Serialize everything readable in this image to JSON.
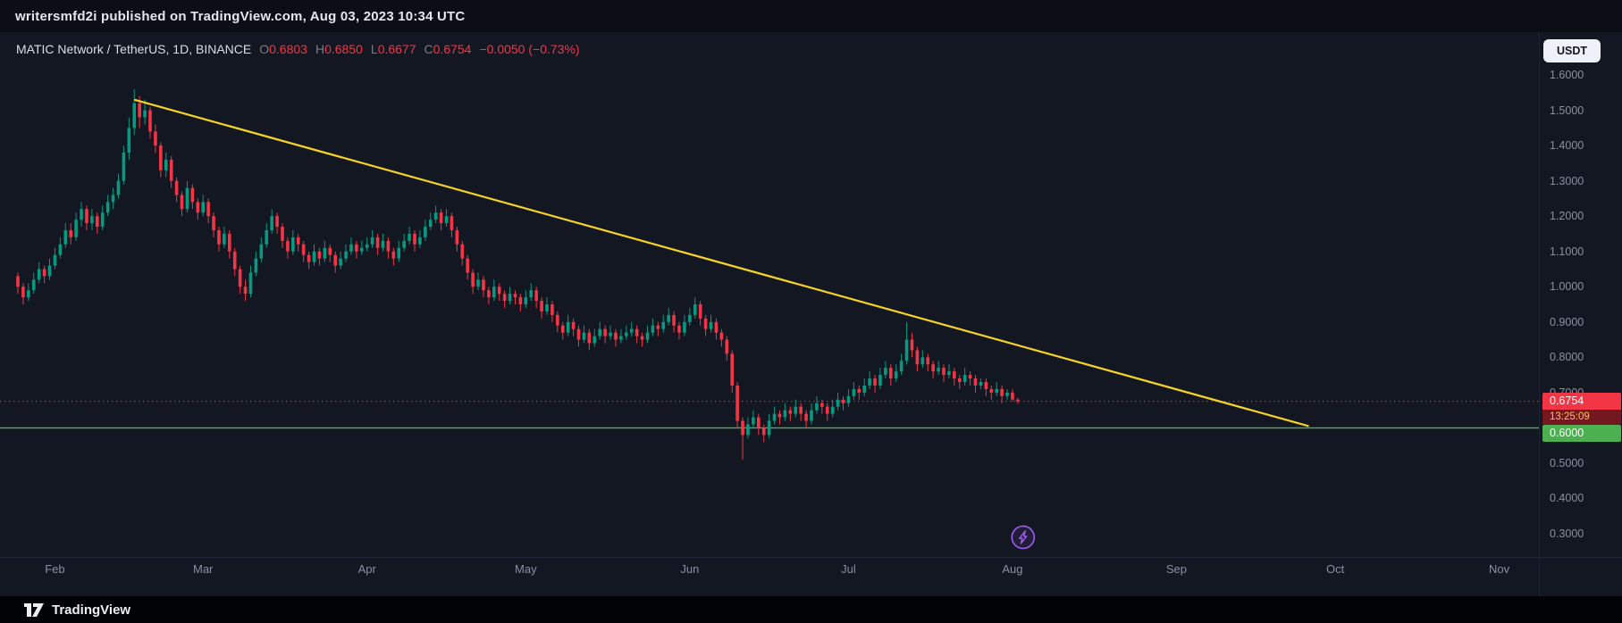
{
  "publish_bar": {
    "text": "writersmfd2i published on TradingView.com, Aug 03, 2023 10:34 UTC"
  },
  "chart_header": {
    "symbol_title": "MATIC Network / TetherUS, 1D, BINANCE",
    "ohlc_items": [
      {
        "label": "O",
        "value": "0.6803"
      },
      {
        "label": "H",
        "value": "0.6850"
      },
      {
        "label": "L",
        "value": "0.6677"
      },
      {
        "label": "C",
        "value": "0.6754"
      }
    ],
    "change": "−0.0050 (−0.73%)"
  },
  "currency_button_label": "USDT",
  "price_axis": {
    "ticks": [
      "1.6000",
      "1.5000",
      "1.4000",
      "1.3000",
      "1.2000",
      "1.1000",
      "1.0000",
      "0.9000",
      "0.8000",
      "0.7000",
      "0.5000",
      "0.4000",
      "0.3000"
    ],
    "last_price_badge": {
      "price": "0.6754",
      "countdown": "13:25:09"
    },
    "support_badge": "0.6000"
  },
  "time_axis": {
    "months": [
      {
        "label": "Feb",
        "t": 7
      },
      {
        "label": "Mar",
        "t": 35
      },
      {
        "label": "Apr",
        "t": 66
      },
      {
        "label": "May",
        "t": 96
      },
      {
        "label": "Jun",
        "t": 127
      },
      {
        "label": "Jul",
        "t": 157
      },
      {
        "label": "Aug",
        "t": 188
      },
      {
        "label": "Sep",
        "t": 219
      },
      {
        "label": "Oct",
        "t": 249
      },
      {
        "label": "Nov",
        "t": 280
      }
    ]
  },
  "footer": {
    "logo_text": "TradingView"
  },
  "chart_data": {
    "type": "candlestick",
    "title": "MATIC Network / TetherUS, 1D, BINANCE",
    "symbol": "MATICUSDT",
    "exchange": "BINANCE",
    "timeframe": "1D",
    "quote_currency": "USDT",
    "x_unit": "days since first visible candle (late Jan 2023)",
    "x_axis_labels": [
      "Feb",
      "Mar",
      "Apr",
      "May",
      "Jun",
      "Jul",
      "Aug",
      "Sep",
      "Oct",
      "Nov"
    ],
    "y_ticks": [
      1.6,
      1.5,
      1.4,
      1.3,
      1.2,
      1.1,
      1.0,
      0.9,
      0.8,
      0.7,
      0.6,
      0.5,
      0.4,
      0.3
    ],
    "ylim": [
      0.25,
      1.65
    ],
    "grid": "off",
    "legend_position": "none",
    "current_candle": {
      "open": 0.6803,
      "high": 0.685,
      "low": 0.6677,
      "close": 0.6754,
      "change": -0.005,
      "change_pct": -0.73
    },
    "candles_format": [
      "open",
      "high",
      "low",
      "close"
    ],
    "candles": [
      [
        1.03,
        1.04,
        0.98,
        1.0
      ],
      [
        1.0,
        1.01,
        0.95,
        0.97
      ],
      [
        0.97,
        1.01,
        0.96,
        0.99
      ],
      [
        0.99,
        1.04,
        0.98,
        1.02
      ],
      [
        1.02,
        1.07,
        1.01,
        1.05
      ],
      [
        1.05,
        1.06,
        1.01,
        1.03
      ],
      [
        1.03,
        1.08,
        1.02,
        1.06
      ],
      [
        1.06,
        1.11,
        1.05,
        1.09
      ],
      [
        1.09,
        1.14,
        1.08,
        1.12
      ],
      [
        1.12,
        1.18,
        1.11,
        1.16
      ],
      [
        1.16,
        1.18,
        1.12,
        1.14
      ],
      [
        1.14,
        1.21,
        1.13,
        1.19
      ],
      [
        1.19,
        1.24,
        1.17,
        1.22
      ],
      [
        1.22,
        1.23,
        1.16,
        1.18
      ],
      [
        1.18,
        1.22,
        1.16,
        1.2
      ],
      [
        1.2,
        1.21,
        1.15,
        1.17
      ],
      [
        1.17,
        1.23,
        1.16,
        1.21
      ],
      [
        1.21,
        1.26,
        1.2,
        1.24
      ],
      [
        1.24,
        1.28,
        1.22,
        1.26
      ],
      [
        1.26,
        1.32,
        1.25,
        1.3
      ],
      [
        1.3,
        1.4,
        1.29,
        1.38
      ],
      [
        1.38,
        1.48,
        1.36,
        1.45
      ],
      [
        1.45,
        1.56,
        1.43,
        1.52
      ],
      [
        1.52,
        1.54,
        1.45,
        1.48
      ],
      [
        1.48,
        1.53,
        1.46,
        1.5
      ],
      [
        1.5,
        1.51,
        1.42,
        1.44
      ],
      [
        1.44,
        1.46,
        1.38,
        1.4
      ],
      [
        1.4,
        1.41,
        1.31,
        1.33
      ],
      [
        1.33,
        1.38,
        1.31,
        1.36
      ],
      [
        1.36,
        1.37,
        1.28,
        1.3
      ],
      [
        1.3,
        1.31,
        1.24,
        1.26
      ],
      [
        1.26,
        1.27,
        1.2,
        1.22
      ],
      [
        1.22,
        1.3,
        1.21,
        1.28
      ],
      [
        1.28,
        1.29,
        1.22,
        1.24
      ],
      [
        1.24,
        1.25,
        1.19,
        1.21
      ],
      [
        1.21,
        1.26,
        1.2,
        1.24
      ],
      [
        1.24,
        1.25,
        1.18,
        1.2
      ],
      [
        1.2,
        1.21,
        1.14,
        1.16
      ],
      [
        1.16,
        1.17,
        1.1,
        1.12
      ],
      [
        1.12,
        1.17,
        1.11,
        1.15
      ],
      [
        1.15,
        1.16,
        1.08,
        1.1
      ],
      [
        1.1,
        1.11,
        1.03,
        1.05
      ],
      [
        1.05,
        1.06,
        0.98,
        1.0
      ],
      [
        1.0,
        1.02,
        0.96,
        0.98
      ],
      [
        0.98,
        1.06,
        0.97,
        1.04
      ],
      [
        1.04,
        1.1,
        1.03,
        1.08
      ],
      [
        1.08,
        1.14,
        1.07,
        1.12
      ],
      [
        1.12,
        1.18,
        1.11,
        1.16
      ],
      [
        1.16,
        1.22,
        1.15,
        1.2
      ],
      [
        1.2,
        1.21,
        1.15,
        1.17
      ],
      [
        1.17,
        1.18,
        1.11,
        1.13
      ],
      [
        1.13,
        1.14,
        1.08,
        1.1
      ],
      [
        1.1,
        1.16,
        1.09,
        1.14
      ],
      [
        1.14,
        1.15,
        1.1,
        1.12
      ],
      [
        1.12,
        1.13,
        1.07,
        1.09
      ],
      [
        1.09,
        1.1,
        1.05,
        1.07
      ],
      [
        1.07,
        1.12,
        1.06,
        1.1
      ],
      [
        1.1,
        1.11,
        1.06,
        1.08
      ],
      [
        1.08,
        1.13,
        1.07,
        1.11
      ],
      [
        1.11,
        1.12,
        1.07,
        1.09
      ],
      [
        1.09,
        1.1,
        1.04,
        1.06
      ],
      [
        1.06,
        1.1,
        1.05,
        1.08
      ],
      [
        1.08,
        1.12,
        1.07,
        1.1
      ],
      [
        1.1,
        1.14,
        1.09,
        1.12
      ],
      [
        1.12,
        1.13,
        1.08,
        1.1
      ],
      [
        1.1,
        1.13,
        1.09,
        1.11
      ],
      [
        1.11,
        1.14,
        1.1,
        1.12
      ],
      [
        1.12,
        1.16,
        1.11,
        1.14
      ],
      [
        1.14,
        1.15,
        1.09,
        1.11
      ],
      [
        1.11,
        1.15,
        1.1,
        1.13
      ],
      [
        1.13,
        1.14,
        1.08,
        1.1
      ],
      [
        1.1,
        1.11,
        1.06,
        1.08
      ],
      [
        1.08,
        1.13,
        1.07,
        1.11
      ],
      [
        1.11,
        1.15,
        1.1,
        1.13
      ],
      [
        1.13,
        1.17,
        1.12,
        1.15
      ],
      [
        1.15,
        1.16,
        1.1,
        1.12
      ],
      [
        1.12,
        1.16,
        1.11,
        1.14
      ],
      [
        1.14,
        1.19,
        1.13,
        1.17
      ],
      [
        1.17,
        1.21,
        1.16,
        1.19
      ],
      [
        1.19,
        1.23,
        1.18,
        1.21
      ],
      [
        1.21,
        1.22,
        1.16,
        1.18
      ],
      [
        1.18,
        1.22,
        1.17,
        1.2
      ],
      [
        1.2,
        1.21,
        1.14,
        1.16
      ],
      [
        1.16,
        1.17,
        1.1,
        1.12
      ],
      [
        1.12,
        1.13,
        1.06,
        1.08
      ],
      [
        1.08,
        1.09,
        1.02,
        1.04
      ],
      [
        1.04,
        1.05,
        0.98,
        1.0
      ],
      [
        1.0,
        1.04,
        0.99,
        1.02
      ],
      [
        1.02,
        1.03,
        0.97,
        0.99
      ],
      [
        0.99,
        1.0,
        0.95,
        0.97
      ],
      [
        0.97,
        1.02,
        0.96,
        1.0
      ],
      [
        1.0,
        1.01,
        0.96,
        0.98
      ],
      [
        0.98,
        0.99,
        0.94,
        0.96
      ],
      [
        0.96,
        1.0,
        0.95,
        0.98
      ],
      [
        0.98,
        0.99,
        0.95,
        0.97
      ],
      [
        0.97,
        0.98,
        0.93,
        0.95
      ],
      [
        0.95,
        0.99,
        0.94,
        0.97
      ],
      [
        0.97,
        1.01,
        0.96,
        0.99
      ],
      [
        0.99,
        1.0,
        0.94,
        0.96
      ],
      [
        0.96,
        0.97,
        0.91,
        0.93
      ],
      [
        0.93,
        0.97,
        0.92,
        0.95
      ],
      [
        0.95,
        0.96,
        0.9,
        0.92
      ],
      [
        0.92,
        0.93,
        0.87,
        0.89
      ],
      [
        0.89,
        0.9,
        0.85,
        0.87
      ],
      [
        0.87,
        0.92,
        0.86,
        0.9
      ],
      [
        0.9,
        0.91,
        0.86,
        0.88
      ],
      [
        0.88,
        0.89,
        0.83,
        0.85
      ],
      [
        0.85,
        0.89,
        0.84,
        0.87
      ],
      [
        0.87,
        0.88,
        0.82,
        0.84
      ],
      [
        0.84,
        0.88,
        0.83,
        0.86
      ],
      [
        0.86,
        0.9,
        0.85,
        0.88
      ],
      [
        0.88,
        0.89,
        0.84,
        0.86
      ],
      [
        0.86,
        0.89,
        0.85,
        0.87
      ],
      [
        0.87,
        0.88,
        0.83,
        0.85
      ],
      [
        0.85,
        0.88,
        0.84,
        0.86
      ],
      [
        0.86,
        0.89,
        0.85,
        0.87
      ],
      [
        0.87,
        0.9,
        0.86,
        0.88
      ],
      [
        0.88,
        0.89,
        0.84,
        0.86
      ],
      [
        0.86,
        0.87,
        0.83,
        0.85
      ],
      [
        0.85,
        0.89,
        0.84,
        0.87
      ],
      [
        0.87,
        0.91,
        0.86,
        0.89
      ],
      [
        0.89,
        0.9,
        0.86,
        0.88
      ],
      [
        0.88,
        0.92,
        0.87,
        0.9
      ],
      [
        0.9,
        0.94,
        0.89,
        0.92
      ],
      [
        0.92,
        0.93,
        0.87,
        0.89
      ],
      [
        0.89,
        0.9,
        0.85,
        0.87
      ],
      [
        0.87,
        0.92,
        0.86,
        0.9
      ],
      [
        0.9,
        0.94,
        0.89,
        0.92
      ],
      [
        0.92,
        0.97,
        0.91,
        0.95
      ],
      [
        0.95,
        0.96,
        0.89,
        0.91
      ],
      [
        0.91,
        0.92,
        0.86,
        0.88
      ],
      [
        0.88,
        0.92,
        0.87,
        0.9
      ],
      [
        0.9,
        0.91,
        0.85,
        0.87
      ],
      [
        0.87,
        0.88,
        0.83,
        0.85
      ],
      [
        0.85,
        0.86,
        0.79,
        0.81
      ],
      [
        0.81,
        0.82,
        0.7,
        0.72
      ],
      [
        0.72,
        0.73,
        0.6,
        0.62
      ],
      [
        0.62,
        0.63,
        0.51,
        0.58
      ],
      [
        0.58,
        0.63,
        0.57,
        0.61
      ],
      [
        0.61,
        0.65,
        0.6,
        0.63
      ],
      [
        0.63,
        0.64,
        0.58,
        0.6
      ],
      [
        0.6,
        0.61,
        0.56,
        0.58
      ],
      [
        0.58,
        0.64,
        0.57,
        0.62
      ],
      [
        0.62,
        0.66,
        0.61,
        0.64
      ],
      [
        0.64,
        0.65,
        0.61,
        0.63
      ],
      [
        0.63,
        0.67,
        0.62,
        0.65
      ],
      [
        0.65,
        0.66,
        0.62,
        0.64
      ],
      [
        0.64,
        0.68,
        0.63,
        0.66
      ],
      [
        0.66,
        0.67,
        0.62,
        0.64
      ],
      [
        0.64,
        0.65,
        0.6,
        0.62
      ],
      [
        0.62,
        0.67,
        0.61,
        0.65
      ],
      [
        0.65,
        0.69,
        0.64,
        0.67
      ],
      [
        0.67,
        0.68,
        0.64,
        0.66
      ],
      [
        0.66,
        0.67,
        0.62,
        0.64
      ],
      [
        0.64,
        0.68,
        0.63,
        0.66
      ],
      [
        0.66,
        0.7,
        0.65,
        0.68
      ],
      [
        0.68,
        0.69,
        0.65,
        0.67
      ],
      [
        0.67,
        0.71,
        0.66,
        0.69
      ],
      [
        0.69,
        0.73,
        0.68,
        0.71
      ],
      [
        0.71,
        0.72,
        0.68,
        0.7
      ],
      [
        0.7,
        0.74,
        0.69,
        0.72
      ],
      [
        0.72,
        0.76,
        0.71,
        0.74
      ],
      [
        0.74,
        0.75,
        0.7,
        0.72
      ],
      [
        0.72,
        0.77,
        0.71,
        0.75
      ],
      [
        0.75,
        0.79,
        0.74,
        0.77
      ],
      [
        0.77,
        0.78,
        0.72,
        0.74
      ],
      [
        0.74,
        0.78,
        0.73,
        0.76
      ],
      [
        0.76,
        0.81,
        0.75,
        0.79
      ],
      [
        0.79,
        0.9,
        0.78,
        0.85
      ],
      [
        0.85,
        0.87,
        0.8,
        0.82
      ],
      [
        0.82,
        0.83,
        0.76,
        0.78
      ],
      [
        0.78,
        0.82,
        0.77,
        0.8
      ],
      [
        0.8,
        0.81,
        0.76,
        0.78
      ],
      [
        0.78,
        0.79,
        0.74,
        0.76
      ],
      [
        0.76,
        0.79,
        0.75,
        0.77
      ],
      [
        0.77,
        0.78,
        0.73,
        0.75
      ],
      [
        0.75,
        0.78,
        0.74,
        0.76
      ],
      [
        0.76,
        0.77,
        0.72,
        0.74
      ],
      [
        0.74,
        0.75,
        0.71,
        0.73
      ],
      [
        0.73,
        0.77,
        0.72,
        0.75
      ],
      [
        0.75,
        0.76,
        0.72,
        0.74
      ],
      [
        0.74,
        0.75,
        0.7,
        0.72
      ],
      [
        0.72,
        0.74,
        0.71,
        0.73
      ],
      [
        0.73,
        0.74,
        0.69,
        0.71
      ],
      [
        0.71,
        0.72,
        0.68,
        0.7
      ],
      [
        0.7,
        0.73,
        0.69,
        0.71
      ],
      [
        0.71,
        0.72,
        0.67,
        0.69
      ],
      [
        0.69,
        0.71,
        0.68,
        0.7
      ],
      [
        0.7,
        0.71,
        0.675,
        0.6803
      ],
      [
        0.6803,
        0.685,
        0.6677,
        0.6754
      ]
    ],
    "overlays": {
      "trendline": {
        "type": "line",
        "from": {
          "t": 22,
          "price": 1.53
        },
        "to": {
          "t": 244,
          "price": 0.605
        }
      },
      "support_line": {
        "type": "horizontal_line",
        "price": 0.6
      },
      "last_price_line": {
        "type": "horizontal_dotted_line",
        "price": 0.6754
      },
      "marker": {
        "type": "lightning-bolt-icon",
        "t": 190,
        "price": 0.29
      }
    },
    "colors": {
      "up": "#089981",
      "down": "#f23645",
      "trendline": "#f5d327",
      "support": "#4caf50",
      "last_price": "#f23645",
      "marker": "#a05df2",
      "background": "#131722"
    }
  }
}
